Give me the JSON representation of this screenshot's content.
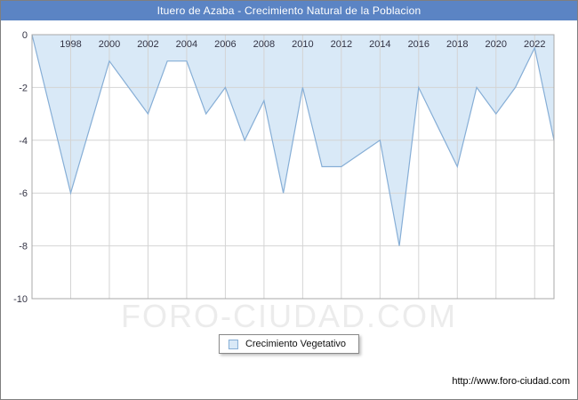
{
  "header": {
    "title": "Ituero de Azaba - Crecimiento Natural de la Poblacion"
  },
  "legend": {
    "label": "Crecimiento Vegetativo"
  },
  "watermark": {
    "text": "FORO-CIUDAD.COM"
  },
  "footer": {
    "url": "http://www.foro-ciudad.com"
  },
  "colors": {
    "header_bg": "#5b84c4",
    "header_text": "#ffffff",
    "area_fill": "#d9e9f7",
    "area_line": "#86aed6",
    "grid": "#d4d4d4",
    "plot_border": "#a8a8a8",
    "tick_text": "#333344",
    "watermark_text": "#ececec"
  },
  "chart_data": {
    "type": "area",
    "title": "Ituero de Azaba - Crecimiento Natural de la Poblacion",
    "xlabel": "",
    "ylabel": "",
    "xlim": [
      1996,
      2023
    ],
    "ylim": [
      -10,
      0
    ],
    "x_ticks": [
      1998,
      2000,
      2002,
      2004,
      2006,
      2008,
      2010,
      2012,
      2014,
      2016,
      2018,
      2020,
      2022
    ],
    "y_ticks": [
      0,
      -2,
      -4,
      -6,
      -8,
      -10
    ],
    "grid": true,
    "legend_position": "bottom",
    "series": [
      {
        "name": "Crecimiento Vegetativo",
        "x": [
          1996,
          1997,
          1998,
          1999,
          2000,
          2001,
          2002,
          2003,
          2004,
          2005,
          2006,
          2007,
          2008,
          2009,
          2010,
          2011,
          2012,
          2013,
          2014,
          2015,
          2016,
          2017,
          2018,
          2019,
          2020,
          2021,
          2022,
          2023
        ],
        "values": [
          0,
          -3,
          -6,
          -3.5,
          -1,
          -2,
          -3,
          -1,
          -1,
          -3,
          -2,
          -4,
          -2.5,
          -6,
          -2,
          -5,
          -5,
          -4.5,
          -4,
          -8,
          -2,
          -3.5,
          -5,
          -2,
          -3,
          -2,
          -0.5,
          -4
        ]
      }
    ]
  }
}
